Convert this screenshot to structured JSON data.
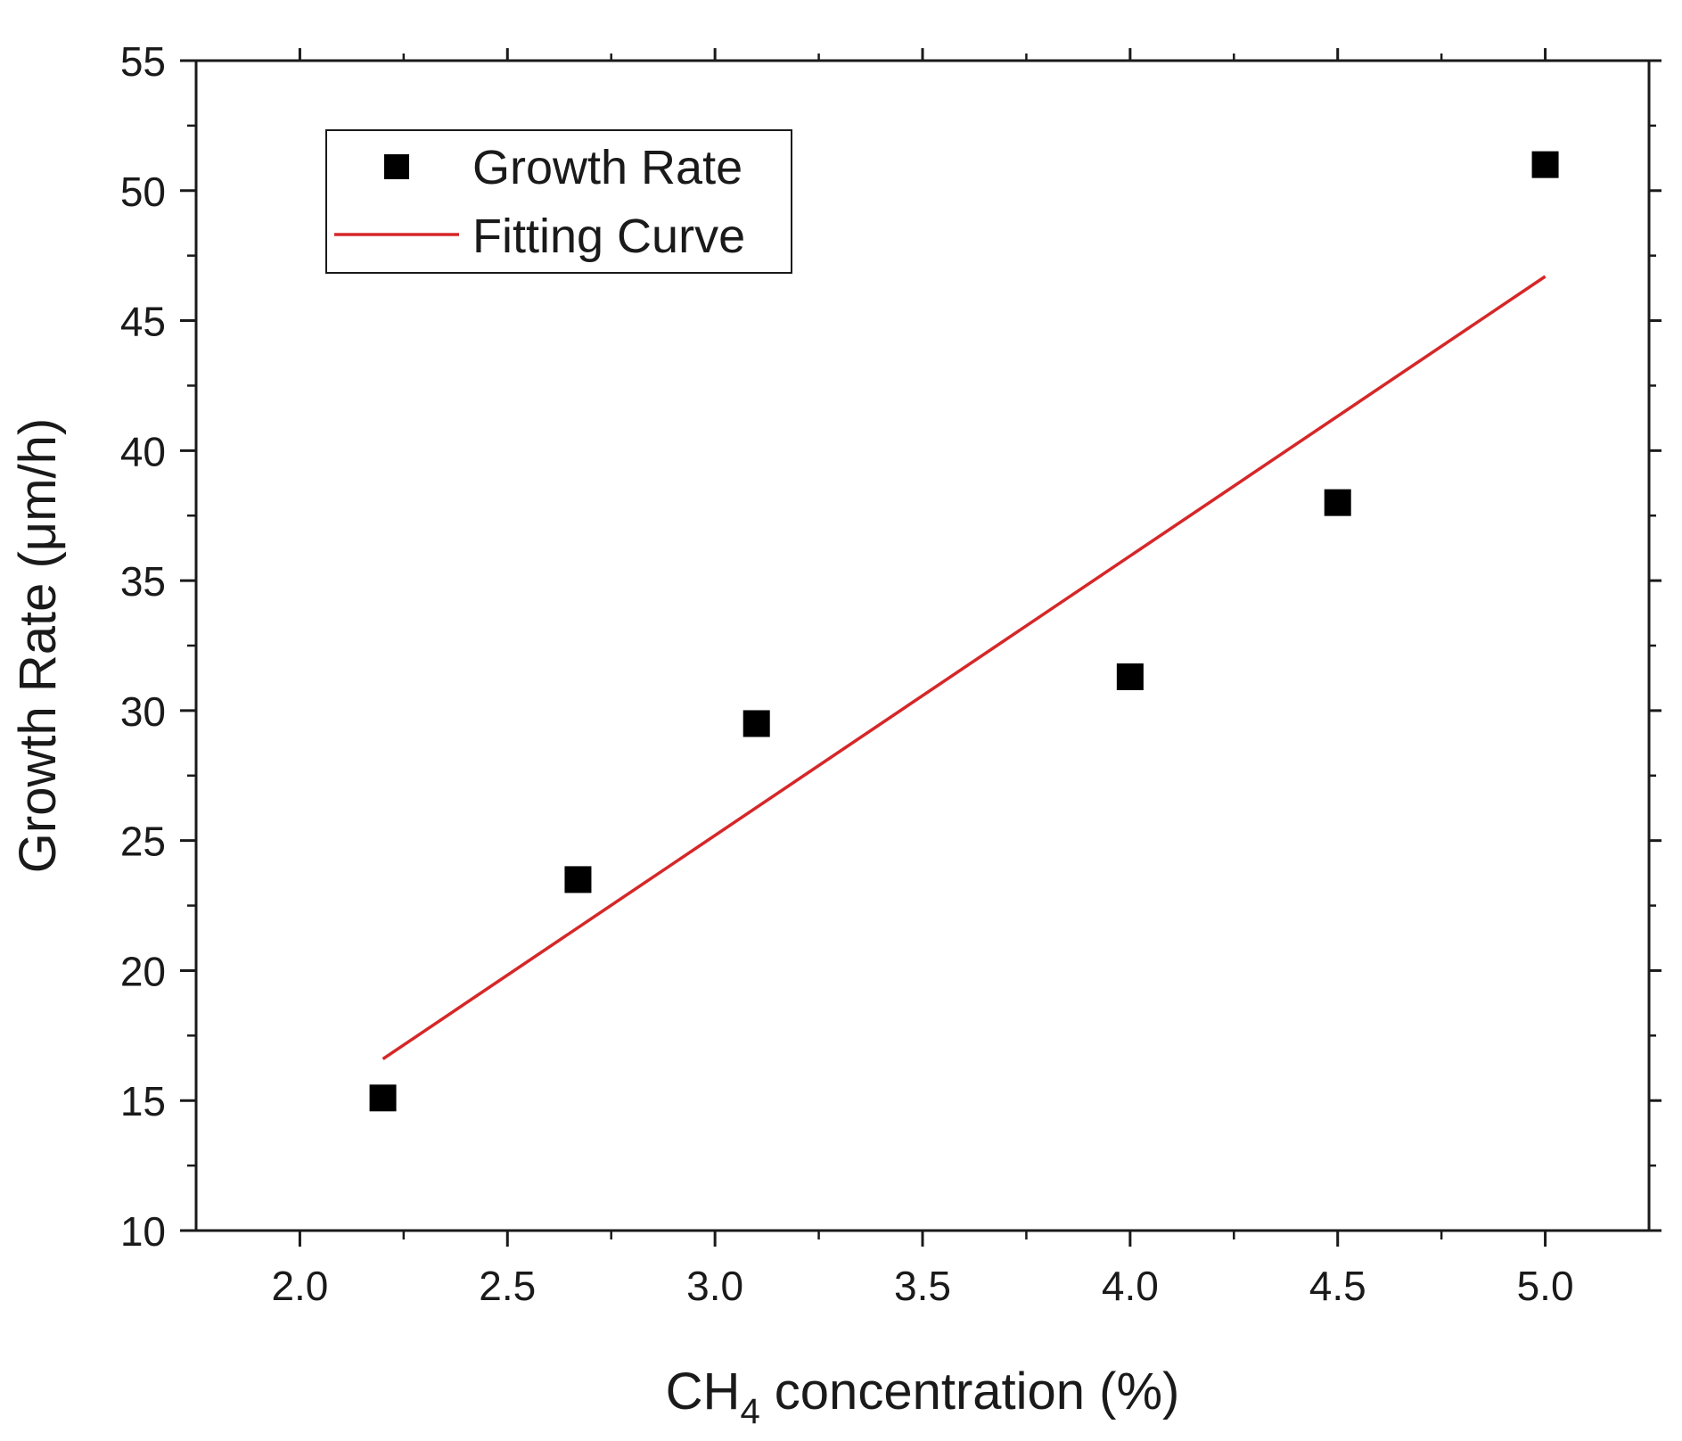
{
  "chart_data": {
    "type": "scatter",
    "title": "",
    "xlabel": {
      "main": "CH",
      "sub": "4",
      "rest": " concentration (%)"
    },
    "ylabel": "Growth Rate (μm/h)",
    "xlim": [
      1.75,
      5.25
    ],
    "ylim": [
      10,
      55
    ],
    "x_ticks": [
      "2.0",
      "2.5",
      "3.0",
      "3.5",
      "4.0",
      "4.5",
      "5.0"
    ],
    "x_tick_values": [
      2.0,
      2.5,
      3.0,
      3.5,
      4.0,
      4.5,
      5.0
    ],
    "y_ticks": [
      "10",
      "15",
      "20",
      "25",
      "30",
      "35",
      "40",
      "45",
      "50",
      "55"
    ],
    "y_tick_values": [
      10,
      15,
      20,
      25,
      30,
      35,
      40,
      45,
      50,
      55
    ],
    "grid": false,
    "legend_position": "top-left",
    "series": [
      {
        "name": "Growth Rate",
        "kind": "scatter",
        "marker": "square",
        "color": "#000000",
        "x": [
          2.2,
          2.67,
          3.1,
          4.0,
          4.5,
          5.0
        ],
        "y": [
          15.1,
          23.5,
          29.5,
          31.3,
          38.0,
          51.0
        ]
      },
      {
        "name": "Fitting Curve",
        "kind": "line",
        "color": "#d62728",
        "x": [
          2.2,
          5.0
        ],
        "y": [
          16.6,
          46.7
        ]
      }
    ]
  }
}
